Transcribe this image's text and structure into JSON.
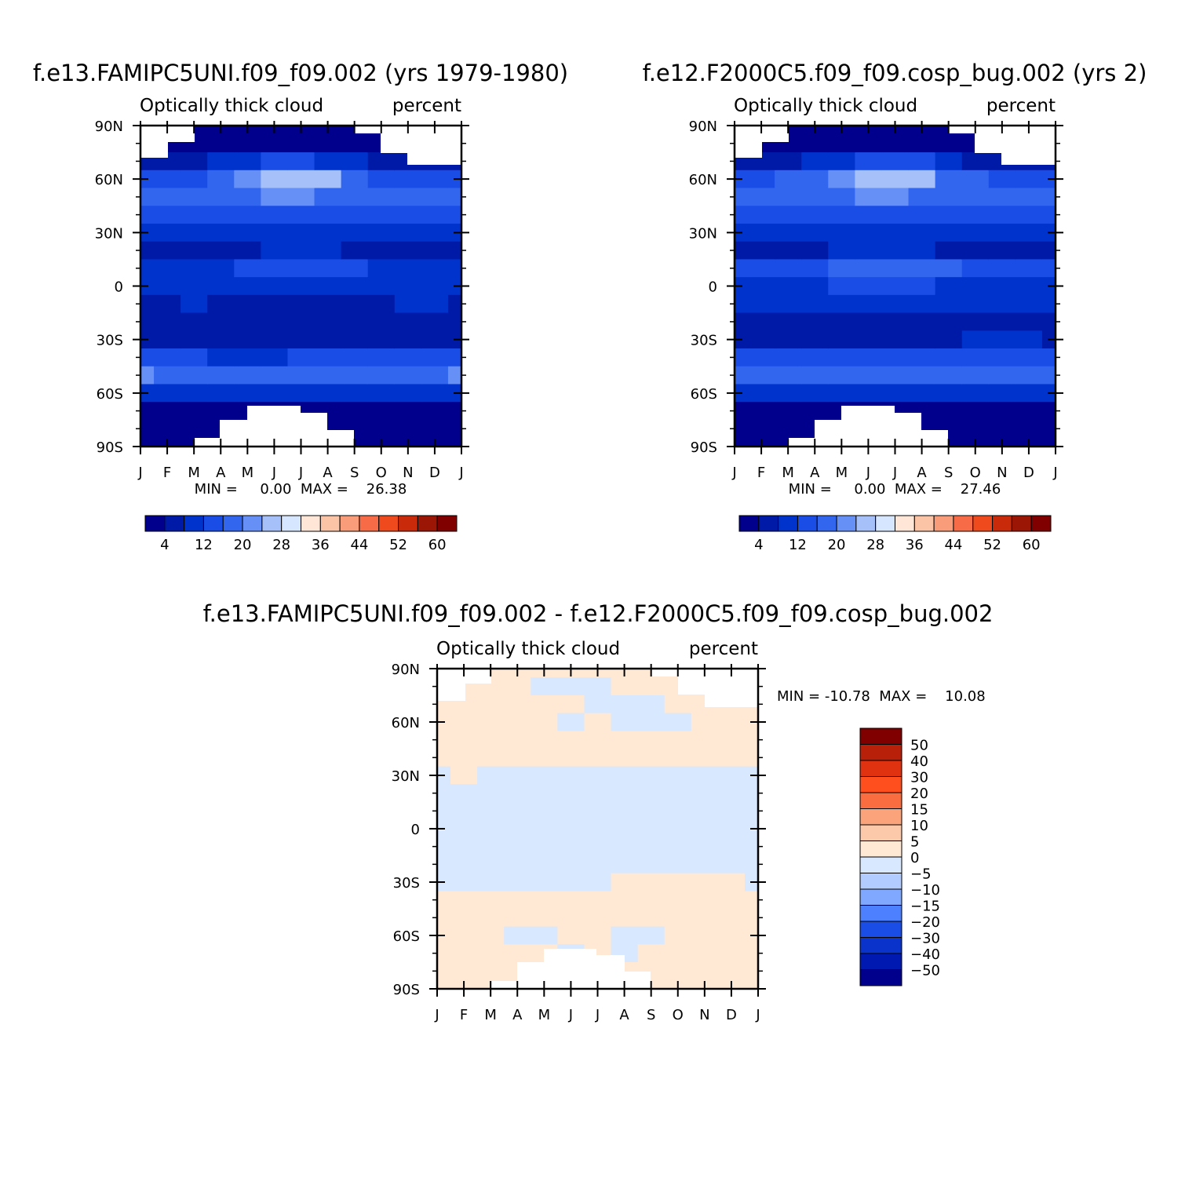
{
  "chart_data": [
    {
      "type": "heatmap",
      "title": "f.e13.FAMIPC5UNI.f09_f09.002 (yrs 1979-1980)",
      "left_subtitle": "Optically thick cloud",
      "right_subtitle": "percent",
      "x_tick_labels": [
        "J",
        "F",
        "M",
        "A",
        "M",
        "J",
        "J",
        "A",
        "S",
        "O",
        "N",
        "D",
        "J"
      ],
      "y_tick_labels": [
        "90N",
        "60N",
        "30N",
        "0",
        "30S",
        "60S",
        "90S"
      ],
      "ylim": [
        -90,
        90
      ],
      "stats": "MIN =     0.00  MAX =    26.38",
      "colorbar": {
        "orientation": "horizontal",
        "labels": [
          "4",
          "12",
          "20",
          "28",
          "36",
          "44",
          "52",
          "60"
        ],
        "colors": [
          "#00008c",
          "#001aa8",
          "#0033cc",
          "#1a4de6",
          "#3366ee",
          "#6690f5",
          "#a6c0fa",
          "#d6e6ff",
          "#ffe6d6",
          "#fcc4a6",
          "#f99c79",
          "#f76b47",
          "#ee4a1e",
          "#c82a0a",
          "#9c1606",
          "#800000"
        ]
      },
      "field": {
        "lat": [
          90,
          80,
          70,
          60,
          50,
          40,
          30,
          20,
          10,
          0,
          -10,
          -20,
          -30,
          -40,
          -50,
          -60,
          -70,
          -80,
          -90
        ],
        "z_by_month": [
          [
            1,
            2,
            6,
            14,
            18,
            12,
            8,
            7,
            10,
            8,
            7,
            4,
            6,
            12,
            20,
            9,
            2,
            1,
            1
          ],
          [
            1,
            2,
            6,
            14,
            18,
            12,
            8,
            7,
            10,
            9,
            7,
            4,
            6,
            12,
            18,
            9,
            2,
            1,
            1
          ],
          [
            1,
            2,
            7,
            15,
            17,
            13,
            8,
            7,
            11,
            9,
            8,
            4,
            6,
            12,
            17,
            8,
            2,
            1,
            1
          ],
          [
            1,
            2,
            8,
            17,
            17,
            13,
            9,
            7,
            11,
            9,
            7,
            5,
            6,
            11,
            16,
            8,
            2,
            1,
            1
          ],
          [
            1,
            3,
            10,
            21,
            18,
            13,
            9,
            7,
            12,
            10,
            7,
            4,
            6,
            11,
            16,
            8,
            2,
            1,
            1
          ],
          [
            1,
            3,
            12,
            25,
            20,
            14,
            9,
            8,
            13,
            10,
            7,
            4,
            6,
            11,
            17,
            8,
            2,
            1,
            1
          ],
          [
            1,
            3,
            12,
            26,
            20,
            14,
            9,
            8,
            13,
            10,
            7,
            4,
            6,
            12,
            17,
            8,
            2,
            1,
            1
          ],
          [
            1,
            3,
            11,
            24,
            18,
            13,
            9,
            8,
            12,
            9,
            7,
            4,
            6,
            12,
            16,
            8,
            2,
            1,
            1
          ],
          [
            1,
            3,
            9,
            18,
            17,
            12,
            8,
            7,
            12,
            9,
            7,
            5,
            6,
            12,
            16,
            8,
            2,
            1,
            1
          ],
          [
            1,
            2,
            7,
            15,
            17,
            12,
            8,
            7,
            11,
            9,
            7,
            5,
            7,
            12,
            16,
            8,
            2,
            1,
            1
          ],
          [
            1,
            2,
            6,
            14,
            18,
            12,
            8,
            7,
            10,
            8,
            8,
            5,
            7,
            13,
            18,
            9,
            2,
            1,
            1
          ],
          [
            1,
            2,
            6,
            14,
            18,
            12,
            8,
            7,
            10,
            8,
            8,
            5,
            7,
            13,
            19,
            9,
            2,
            1,
            1
          ],
          [
            1,
            2,
            6,
            14,
            18,
            12,
            8,
            7,
            10,
            8,
            7,
            4,
            6,
            12,
            20,
            9,
            2,
            1,
            1
          ]
        ]
      }
    },
    {
      "type": "heatmap",
      "title": "f.e12.F2000C5.f09_f09.cosp_bug.002 (yrs 2)",
      "left_subtitle": "Optically thick cloud",
      "right_subtitle": "percent",
      "x_tick_labels": [
        "J",
        "F",
        "M",
        "A",
        "M",
        "J",
        "J",
        "A",
        "S",
        "O",
        "N",
        "D",
        "J"
      ],
      "y_tick_labels": [
        "90N",
        "60N",
        "30N",
        "0",
        "30S",
        "60S",
        "90S"
      ],
      "ylim": [
        -90,
        90
      ],
      "stats": "MIN =     0.00  MAX =    27.46",
      "colorbar": {
        "orientation": "horizontal",
        "labels": [
          "4",
          "12",
          "20",
          "28",
          "36",
          "44",
          "52",
          "60"
        ],
        "colors": [
          "#00008c",
          "#001aa8",
          "#0033cc",
          "#1a4de6",
          "#3366ee",
          "#6690f5",
          "#a6c0fa",
          "#d6e6ff",
          "#ffe6d6",
          "#fcc4a6",
          "#f99c79",
          "#f76b47",
          "#ee4a1e",
          "#c82a0a",
          "#9c1606",
          "#800000"
        ]
      },
      "field": {
        "lat": [
          90,
          80,
          70,
          60,
          50,
          40,
          30,
          20,
          10,
          0,
          -10,
          -20,
          -30,
          -40,
          -50,
          -60,
          -70,
          -80,
          -90
        ],
        "z_by_month": [
          [
            1,
            2,
            6,
            15,
            18,
            13,
            9,
            7,
            14,
            10,
            9,
            5,
            7,
            13,
            19,
            9,
            2,
            1,
            1
          ],
          [
            1,
            2,
            6,
            15,
            18,
            13,
            9,
            7,
            14,
            11,
            9,
            5,
            7,
            13,
            18,
            9,
            2,
            1,
            1
          ],
          [
            1,
            2,
            7,
            16,
            18,
            13,
            9,
            7,
            15,
            11,
            9,
            5,
            7,
            13,
            17,
            8,
            2,
            1,
            1
          ],
          [
            1,
            2,
            8,
            18,
            18,
            13,
            9,
            7,
            15,
            11,
            9,
            5,
            7,
            12,
            17,
            8,
            2,
            1,
            1
          ],
          [
            1,
            3,
            10,
            22,
            19,
            14,
            10,
            8,
            16,
            12,
            9,
            5,
            7,
            12,
            17,
            8,
            2,
            1,
            1
          ],
          [
            1,
            3,
            12,
            26,
            20,
            14,
            10,
            8,
            17,
            12,
            9,
            5,
            7,
            12,
            17,
            8,
            2,
            1,
            1
          ],
          [
            1,
            3,
            13,
            27,
            20,
            14,
            10,
            8,
            18,
            12,
            9,
            5,
            7,
            12,
            17,
            8,
            2,
            1,
            1
          ],
          [
            1,
            3,
            12,
            25,
            19,
            13,
            10,
            8,
            17,
            12,
            9,
            5,
            7,
            13,
            17,
            8,
            2,
            1,
            1
          ],
          [
            1,
            3,
            9,
            19,
            18,
            13,
            9,
            7,
            16,
            11,
            9,
            5,
            7,
            13,
            17,
            8,
            2,
            1,
            1
          ],
          [
            1,
            2,
            7,
            16,
            18,
            13,
            9,
            7,
            15,
            11,
            9,
            5,
            8,
            13,
            17,
            8,
            2,
            1,
            1
          ],
          [
            1,
            2,
            6,
            15,
            18,
            13,
            9,
            7,
            14,
            10,
            9,
            5,
            8,
            14,
            18,
            9,
            2,
            1,
            1
          ],
          [
            1,
            2,
            6,
            15,
            18,
            13,
            9,
            7,
            14,
            10,
            9,
            5,
            8,
            14,
            19,
            9,
            2,
            1,
            1
          ],
          [
            1,
            2,
            6,
            15,
            18,
            13,
            9,
            7,
            14,
            10,
            9,
            5,
            7,
            13,
            19,
            9,
            2,
            1,
            1
          ]
        ]
      }
    },
    {
      "type": "heatmap",
      "title": "f.e13.FAMIPC5UNI.f09_f09.002 - f.e12.F2000C5.f09_f09.cosp_bug.002",
      "left_subtitle": "Optically thick cloud",
      "right_subtitle": "percent",
      "x_tick_labels": [
        "J",
        "F",
        "M",
        "A",
        "M",
        "J",
        "J",
        "A",
        "S",
        "O",
        "N",
        "D",
        "J"
      ],
      "y_tick_labels": [
        "90N",
        "60N",
        "30N",
        "0",
        "30S",
        "60S",
        "90S"
      ],
      "ylim": [
        -90,
        90
      ],
      "stats": "MIN = -10.78  MAX =    10.08",
      "colorbar": {
        "orientation": "vertical",
        "labels": [
          "50",
          "40",
          "30",
          "20",
          "15",
          "10",
          "5",
          "0",
          "-5",
          "-10",
          "-15",
          "-20",
          "-30",
          "-40",
          "-50"
        ],
        "colors": [
          "#800000",
          "#b8200a",
          "#e03210",
          "#ff4f1f",
          "#f96d40",
          "#fba37a",
          "#fdc9ab",
          "#ffe8d4",
          "#d8e8ff",
          "#b3ccff",
          "#80a8ff",
          "#4d80ff",
          "#1a4de6",
          "#0a33cc",
          "#0019b0",
          "#00008c"
        ]
      },
      "field": {
        "lat": [
          90,
          80,
          70,
          60,
          50,
          40,
          30,
          20,
          10,
          0,
          -10,
          -20,
          -30,
          -40,
          -50,
          -60,
          -70,
          -80,
          -90
        ],
        "z_by_month": [
          [
            1,
            1,
            1,
            1,
            1,
            2,
            -2,
            -1,
            -3,
            -4,
            -2,
            -2,
            -1,
            2,
            3,
            2,
            1,
            1,
            1
          ],
          [
            1,
            1,
            1,
            1,
            1,
            2,
            1,
            -1,
            -3,
            -4,
            -2,
            -2,
            -1,
            2,
            3,
            2,
            1,
            1,
            1
          ],
          [
            1,
            1,
            1,
            1,
            1,
            1,
            -2,
            -1,
            -3,
            -4,
            -2,
            -2,
            -1,
            1,
            2,
            2,
            1,
            1,
            1
          ],
          [
            1,
            1,
            1,
            1,
            1,
            1,
            -2,
            -1,
            -3,
            -5,
            -2,
            -2,
            -1,
            1,
            2,
            -1,
            1,
            1,
            1
          ],
          [
            1,
            -1,
            1,
            1,
            1,
            1,
            -2,
            -1,
            -3,
            -4,
            -3,
            -1,
            -1,
            1,
            2,
            -1,
            1,
            1,
            1
          ],
          [
            1,
            -1,
            1,
            -1,
            1,
            1,
            -2,
            -1,
            -3,
            -4,
            -2,
            -2,
            -1,
            1,
            2,
            1,
            -1,
            1,
            1
          ],
          [
            2,
            -1,
            -2,
            1,
            1,
            1,
            -2,
            -1,
            -3,
            -3,
            -2,
            -2,
            -1,
            1,
            2,
            1,
            1,
            1,
            1
          ],
          [
            2,
            1,
            -2,
            -1,
            1,
            1,
            -2,
            -1,
            -3,
            -3,
            -2,
            -1,
            2,
            1,
            2,
            -1,
            -1,
            1,
            1
          ],
          [
            1,
            1,
            -1,
            -1,
            1,
            1,
            -2,
            -1,
            -3,
            -3,
            -2,
            -2,
            1,
            1,
            2,
            -1,
            1,
            1,
            1
          ],
          [
            1,
            1,
            1,
            -1,
            1,
            1,
            -2,
            -1,
            -3,
            -3,
            -2,
            -2,
            1,
            1,
            3,
            1,
            1,
            1,
            1
          ],
          [
            1,
            1,
            1,
            2,
            1,
            1,
            -2,
            -1,
            -3,
            -3,
            -2,
            -2,
            1,
            1,
            3,
            1,
            1,
            1,
            1
          ],
          [
            1,
            1,
            1,
            3,
            1,
            1,
            -2,
            -1,
            -3,
            -4,
            -2,
            -2,
            1,
            1,
            2,
            1,
            1,
            1,
            1
          ],
          [
            1,
            1,
            1,
            1,
            1,
            2,
            -2,
            -1,
            -3,
            -4,
            -2,
            -2,
            -1,
            2,
            3,
            2,
            1,
            1,
            1
          ]
        ]
      }
    }
  ]
}
